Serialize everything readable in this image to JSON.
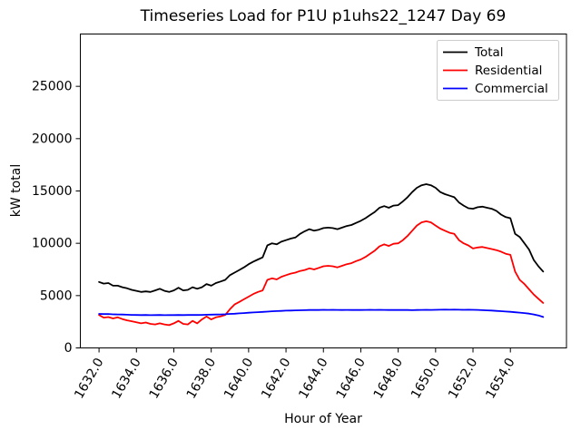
{
  "chart_data": {
    "type": "line",
    "title": "Timeseries Load for P1U p1uhs22_1247  Day 69",
    "xlabel": "Hour of Year",
    "ylabel": "kW total",
    "xlim": [
      1631.0,
      1657.0
    ],
    "ylim": [
      0,
      30000
    ],
    "grid": false,
    "legend_position": "upper right",
    "xticks": [
      1632,
      1634,
      1636,
      1638,
      1640,
      1642,
      1644,
      1646,
      1648,
      1650,
      1652,
      1654
    ],
    "xtick_labels": [
      "1632.0",
      "1634.0",
      "1636.0",
      "1638.0",
      "1640.0",
      "1642.0",
      "1644.0",
      "1646.0",
      "1648.0",
      "1650.0",
      "1652.0",
      "1654.0"
    ],
    "yticks": [
      0,
      5000,
      10000,
      15000,
      20000,
      25000
    ],
    "ytick_labels": [
      "0",
      "5000",
      "10000",
      "15000",
      "20000",
      "25000"
    ],
    "x": [
      1632.0,
      1632.25,
      1632.5,
      1632.75,
      1633.0,
      1633.25,
      1633.5,
      1633.75,
      1634.0,
      1634.25,
      1634.5,
      1634.75,
      1635.0,
      1635.25,
      1635.5,
      1635.75,
      1636.0,
      1636.25,
      1636.5,
      1636.75,
      1637.0,
      1637.25,
      1637.5,
      1637.75,
      1638.0,
      1638.25,
      1638.5,
      1638.75,
      1639.0,
      1639.25,
      1639.5,
      1639.75,
      1640.0,
      1640.25,
      1640.5,
      1640.75,
      1641.0,
      1641.25,
      1641.5,
      1641.75,
      1642.0,
      1642.25,
      1642.5,
      1642.75,
      1643.0,
      1643.25,
      1643.5,
      1643.75,
      1644.0,
      1644.25,
      1644.5,
      1644.75,
      1645.0,
      1645.25,
      1645.5,
      1645.75,
      1646.0,
      1646.25,
      1646.5,
      1646.75,
      1647.0,
      1647.25,
      1647.5,
      1647.75,
      1648.0,
      1648.25,
      1648.5,
      1648.75,
      1649.0,
      1649.25,
      1649.5,
      1649.75,
      1650.0,
      1650.25,
      1650.5,
      1650.75,
      1651.0,
      1651.25,
      1651.5,
      1651.75,
      1652.0,
      1652.25,
      1652.5,
      1652.75,
      1653.0,
      1653.25,
      1653.5,
      1653.75,
      1654.0,
      1654.25,
      1654.5,
      1654.75,
      1655.0,
      1655.25,
      1655.5,
      1655.75
    ],
    "series": [
      {
        "name": "Total",
        "color": "#000000",
        "values": [
          6300,
          6150,
          6200,
          5950,
          5950,
          5800,
          5700,
          5550,
          5450,
          5350,
          5400,
          5350,
          5500,
          5650,
          5450,
          5350,
          5500,
          5750,
          5500,
          5550,
          5800,
          5650,
          5800,
          6100,
          5950,
          6200,
          6350,
          6500,
          6950,
          7200,
          7450,
          7700,
          8000,
          8250,
          8450,
          8650,
          9800,
          10000,
          9900,
          10150,
          10300,
          10450,
          10550,
          10900,
          11150,
          11350,
          11200,
          11300,
          11450,
          11500,
          11450,
          11350,
          11500,
          11650,
          11750,
          11950,
          12150,
          12400,
          12700,
          13000,
          13400,
          13550,
          13400,
          13600,
          13650,
          14000,
          14400,
          14900,
          15300,
          15550,
          15650,
          15550,
          15300,
          14900,
          14700,
          14550,
          14400,
          13900,
          13600,
          13350,
          13300,
          13450,
          13500,
          13400,
          13300,
          13100,
          12750,
          12500,
          12400,
          10900,
          10600,
          10000,
          9400,
          8400,
          7800,
          7300
        ]
      },
      {
        "name": "Residential",
        "color": "#ff0000",
        "values": [
          3150,
          2900,
          2950,
          2820,
          2920,
          2760,
          2640,
          2550,
          2450,
          2350,
          2430,
          2300,
          2250,
          2350,
          2250,
          2180,
          2350,
          2580,
          2300,
          2250,
          2580,
          2350,
          2720,
          3000,
          2720,
          2920,
          3010,
          3150,
          3700,
          4150,
          4400,
          4650,
          4900,
          5150,
          5350,
          5500,
          6500,
          6650,
          6550,
          6800,
          6950,
          7100,
          7200,
          7350,
          7450,
          7600,
          7500,
          7650,
          7800,
          7850,
          7800,
          7700,
          7850,
          8000,
          8100,
          8300,
          8450,
          8700,
          9000,
          9300,
          9700,
          9900,
          9750,
          9950,
          10000,
          10300,
          10700,
          11200,
          11700,
          12000,
          12100,
          12000,
          11700,
          11400,
          11200,
          11000,
          10900,
          10300,
          10000,
          9800,
          9500,
          9600,
          9650,
          9550,
          9450,
          9350,
          9200,
          9000,
          8900,
          7300,
          6500,
          6100,
          5600,
          5100,
          4700,
          4300
        ]
      },
      {
        "name": "Commercial",
        "color": "#0000ff",
        "values": [
          3250,
          3230,
          3240,
          3210,
          3200,
          3190,
          3170,
          3160,
          3150,
          3140,
          3150,
          3130,
          3140,
          3150,
          3130,
          3140,
          3140,
          3150,
          3140,
          3150,
          3160,
          3150,
          3160,
          3170,
          3180,
          3190,
          3200,
          3220,
          3250,
          3270,
          3300,
          3330,
          3360,
          3390,
          3420,
          3440,
          3470,
          3500,
          3520,
          3540,
          3560,
          3570,
          3590,
          3600,
          3610,
          3620,
          3630,
          3620,
          3640,
          3630,
          3640,
          3630,
          3620,
          3630,
          3620,
          3630,
          3620,
          3630,
          3640,
          3630,
          3640,
          3630,
          3620,
          3630,
          3620,
          3630,
          3620,
          3610,
          3620,
          3630,
          3640,
          3630,
          3640,
          3650,
          3660,
          3650,
          3660,
          3650,
          3640,
          3650,
          3640,
          3630,
          3610,
          3590,
          3570,
          3540,
          3510,
          3480,
          3450,
          3410,
          3370,
          3330,
          3280,
          3200,
          3100,
          2960
        ]
      }
    ]
  }
}
